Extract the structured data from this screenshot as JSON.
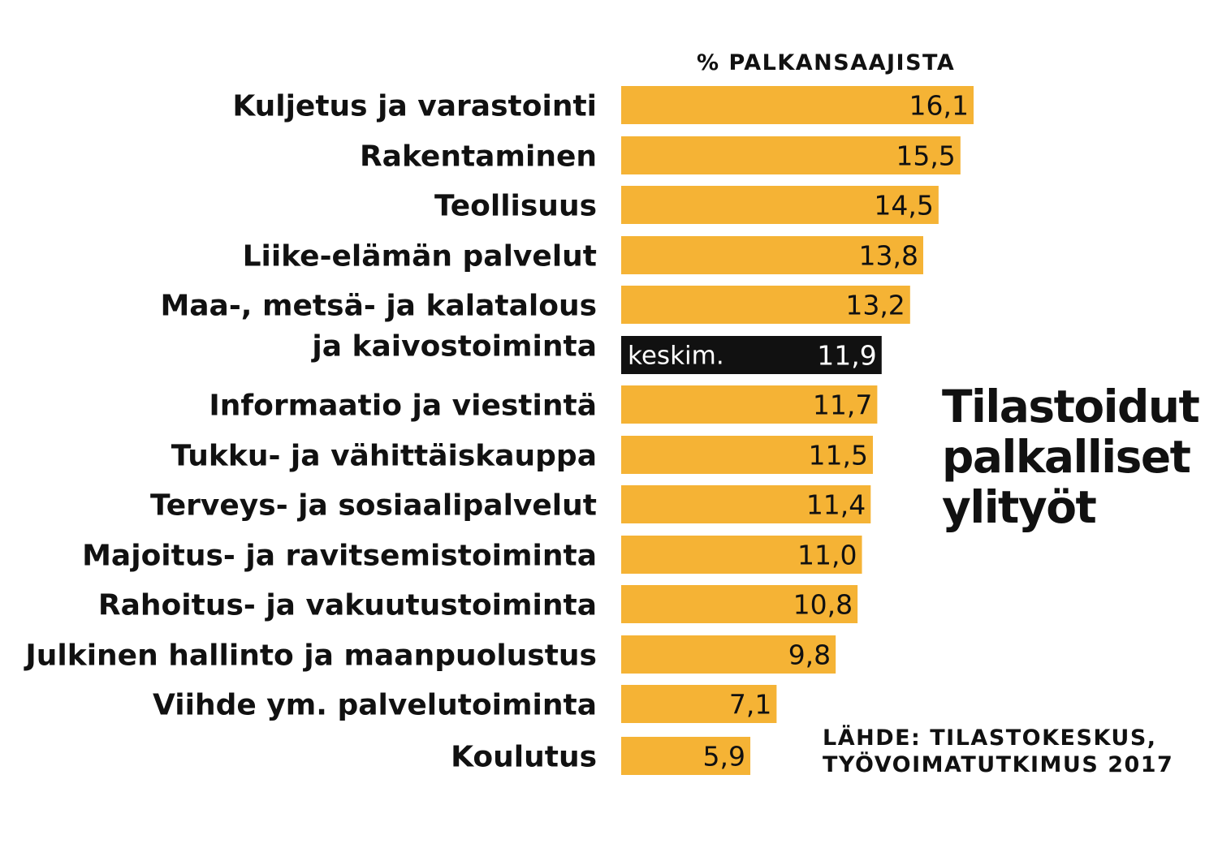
{
  "chart_data": {
    "type": "bar",
    "orientation": "horizontal",
    "title": [
      "Tilastoidut",
      "palkalliset",
      "ylityöt"
    ],
    "unit_label": "% PALKANSAAJISTA",
    "categories": [
      [
        "Kuljetus ja varastointi"
      ],
      [
        "Rakentaminen"
      ],
      [
        "Teollisuus"
      ],
      [
        "Liike-elämän palvelut"
      ],
      [
        "Maa-, metsä- ja kalatalous",
        "ja kaivostoiminta"
      ],
      [
        "keskim."
      ],
      [
        "Informaatio ja viestintä"
      ],
      [
        "Tukku- ja vähittäiskauppa"
      ],
      [
        "Terveys- ja sosiaalipalvelut"
      ],
      [
        "Majoitus- ja ravitsemistoiminta"
      ],
      [
        "Rahoitus- ja vakuutustoiminta"
      ],
      [
        "Julkinen hallinto ja maanpuolustus"
      ],
      [
        "Viihde ym. palvelutoiminta"
      ],
      [
        "Koulutus"
      ]
    ],
    "values": [
      16.1,
      15.5,
      14.5,
      13.8,
      13.2,
      11.9,
      11.7,
      11.5,
      11.4,
      11.0,
      10.8,
      9.8,
      7.1,
      5.9
    ],
    "value_labels": [
      "16,1",
      "15,5",
      "14,5",
      "13,8",
      "13,2",
      "11,9",
      "11,7",
      "11,5",
      "11,4",
      "11,0",
      "10,8",
      "9,8",
      "7,1",
      "5,9"
    ],
    "highlight_index": 5,
    "source": [
      "LÄHDE: TILASTOKESKUS,",
      "TYÖVOIMATUTKIMUS 2017"
    ],
    "colors": {
      "bar": "#F5B335",
      "highlight": "#111111",
      "text": "#111111",
      "highlight_text": "#ffffff"
    },
    "grid": false,
    "legend": "none"
  }
}
